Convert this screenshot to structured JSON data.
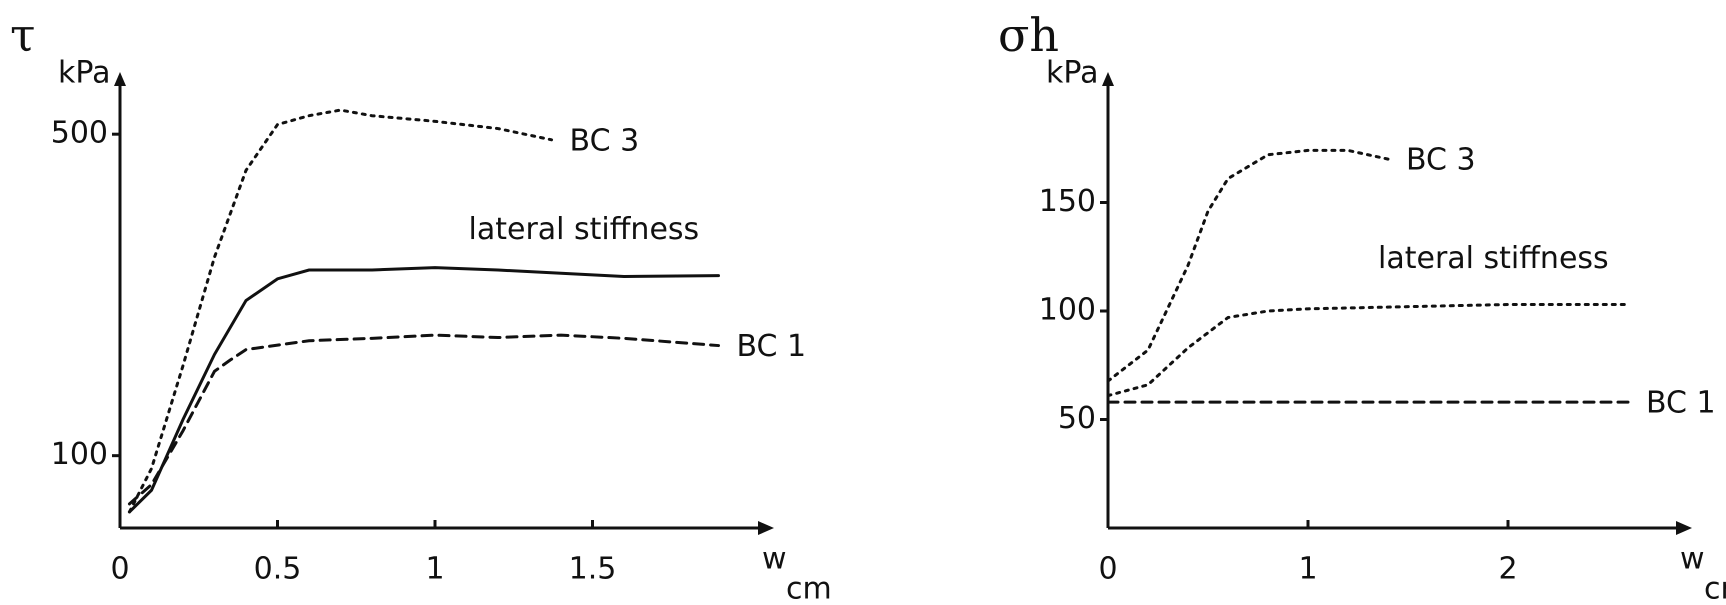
{
  "chart_data": [
    {
      "type": "line",
      "ylabel": "τ",
      "yunit": "kPa",
      "xlabel": "w",
      "xunit": "cm",
      "xlim": [
        0,
        2
      ],
      "xticks": [
        0,
        0.5,
        1,
        1.5
      ],
      "ylim": [
        10,
        550
      ],
      "yticks": [
        100,
        500
      ],
      "series": [
        {
          "name": "BC 3",
          "color": "#111111",
          "dash": "dotted",
          "x": [
            0.03,
            0.1,
            0.2,
            0.3,
            0.4,
            0.5,
            0.6,
            0.7,
            0.8,
            1.0,
            1.2,
            1.37
          ],
          "values": [
            30,
            84,
            212,
            347,
            455,
            512,
            523,
            530,
            523,
            516,
            507,
            493
          ]
        },
        {
          "name": "lateral stiffness",
          "color": "#111111",
          "dash": "solid",
          "x": [
            0.03,
            0.1,
            0.2,
            0.3,
            0.4,
            0.5,
            0.6,
            0.8,
            1.0,
            1.2,
            1.4,
            1.6,
            1.9
          ],
          "values": [
            30,
            57,
            145,
            226,
            293,
            320,
            331,
            331,
            334,
            331,
            327,
            323,
            324
          ]
        },
        {
          "name": "BC 1",
          "color": "#111111",
          "dash": "dashed",
          "x": [
            0.03,
            0.1,
            0.2,
            0.3,
            0.35,
            0.4,
            0.6,
            0.8,
            1.0,
            1.2,
            1.4,
            1.6,
            1.9
          ],
          "values": [
            40,
            64,
            131,
            205,
            219,
            232,
            243,
            246,
            250,
            247,
            250,
            246,
            237
          ]
        }
      ]
    },
    {
      "type": "line",
      "ylabel": "σh",
      "yunit": "kPa",
      "xlabel": "w",
      "xunit": "cm",
      "xlim": [
        0,
        2.8
      ],
      "xticks": [
        0,
        1,
        2
      ],
      "ylim": [
        0,
        200
      ],
      "yticks": [
        50,
        100,
        150
      ],
      "series": [
        {
          "name": "BC 3",
          "color": "#111111",
          "dash": "dotted",
          "x": [
            0,
            0.2,
            0.4,
            0.5,
            0.6,
            0.8,
            1.0,
            1.2,
            1.4
          ],
          "values": [
            67.7,
            82,
            121,
            146,
            161,
            172,
            174,
            174,
            170
          ]
        },
        {
          "name": "lateral stiffness",
          "color": "#111111",
          "dash": "dotted",
          "x": [
            0,
            0.2,
            0.4,
            0.6,
            0.8,
            1.0,
            1.5,
            2.0,
            2.6
          ],
          "values": [
            61,
            66,
            83,
            97,
            100,
            101,
            102,
            103,
            103
          ]
        },
        {
          "name": "BC 1",
          "color": "#111111",
          "dash": "dashed",
          "x": [
            0,
            2.6
          ],
          "values": [
            58,
            58
          ]
        }
      ]
    }
  ]
}
